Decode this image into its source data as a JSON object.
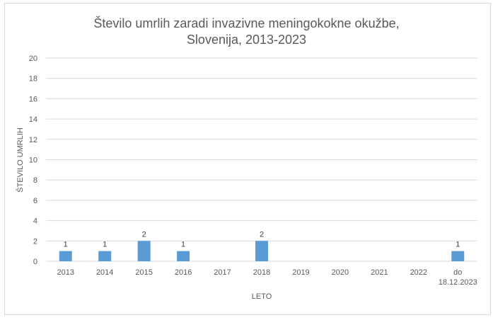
{
  "chart_data": {
    "type": "bar",
    "title": "Število umrlih zaradi invazivne meningokokne okužbe, Slovenija, 2013-2023",
    "title_lines": [
      "Število umrlih zaradi invazivne meningokokne okužbe,",
      "Slovenija, 2013-2023"
    ],
    "xlabel": "LETO",
    "ylabel": "ŠTEVILO UMRLIH",
    "categories": [
      "2013",
      "2014",
      "2015",
      "2016",
      "2017",
      "2018",
      "2019",
      "2020",
      "2021",
      "2022",
      "do 18.12.2023"
    ],
    "category_lines": [
      [
        "2013"
      ],
      [
        "2014"
      ],
      [
        "2015"
      ],
      [
        "2016"
      ],
      [
        "2017"
      ],
      [
        "2018"
      ],
      [
        "2019"
      ],
      [
        "2020"
      ],
      [
        "2021"
      ],
      [
        "2022"
      ],
      [
        "do",
        "18.12.2023"
      ]
    ],
    "values": [
      1,
      1,
      2,
      1,
      0,
      2,
      0,
      0,
      0,
      0,
      1
    ],
    "data_labels": [
      "1",
      "1",
      "2",
      "1",
      "",
      "2",
      "",
      "",
      "",
      "",
      "1"
    ],
    "ylim": [
      0,
      20
    ],
    "yticks": [
      0,
      2,
      4,
      6,
      8,
      10,
      12,
      14,
      16,
      18,
      20
    ],
    "grid": true,
    "legend": null,
    "bar_color": "#5b9bd5"
  }
}
